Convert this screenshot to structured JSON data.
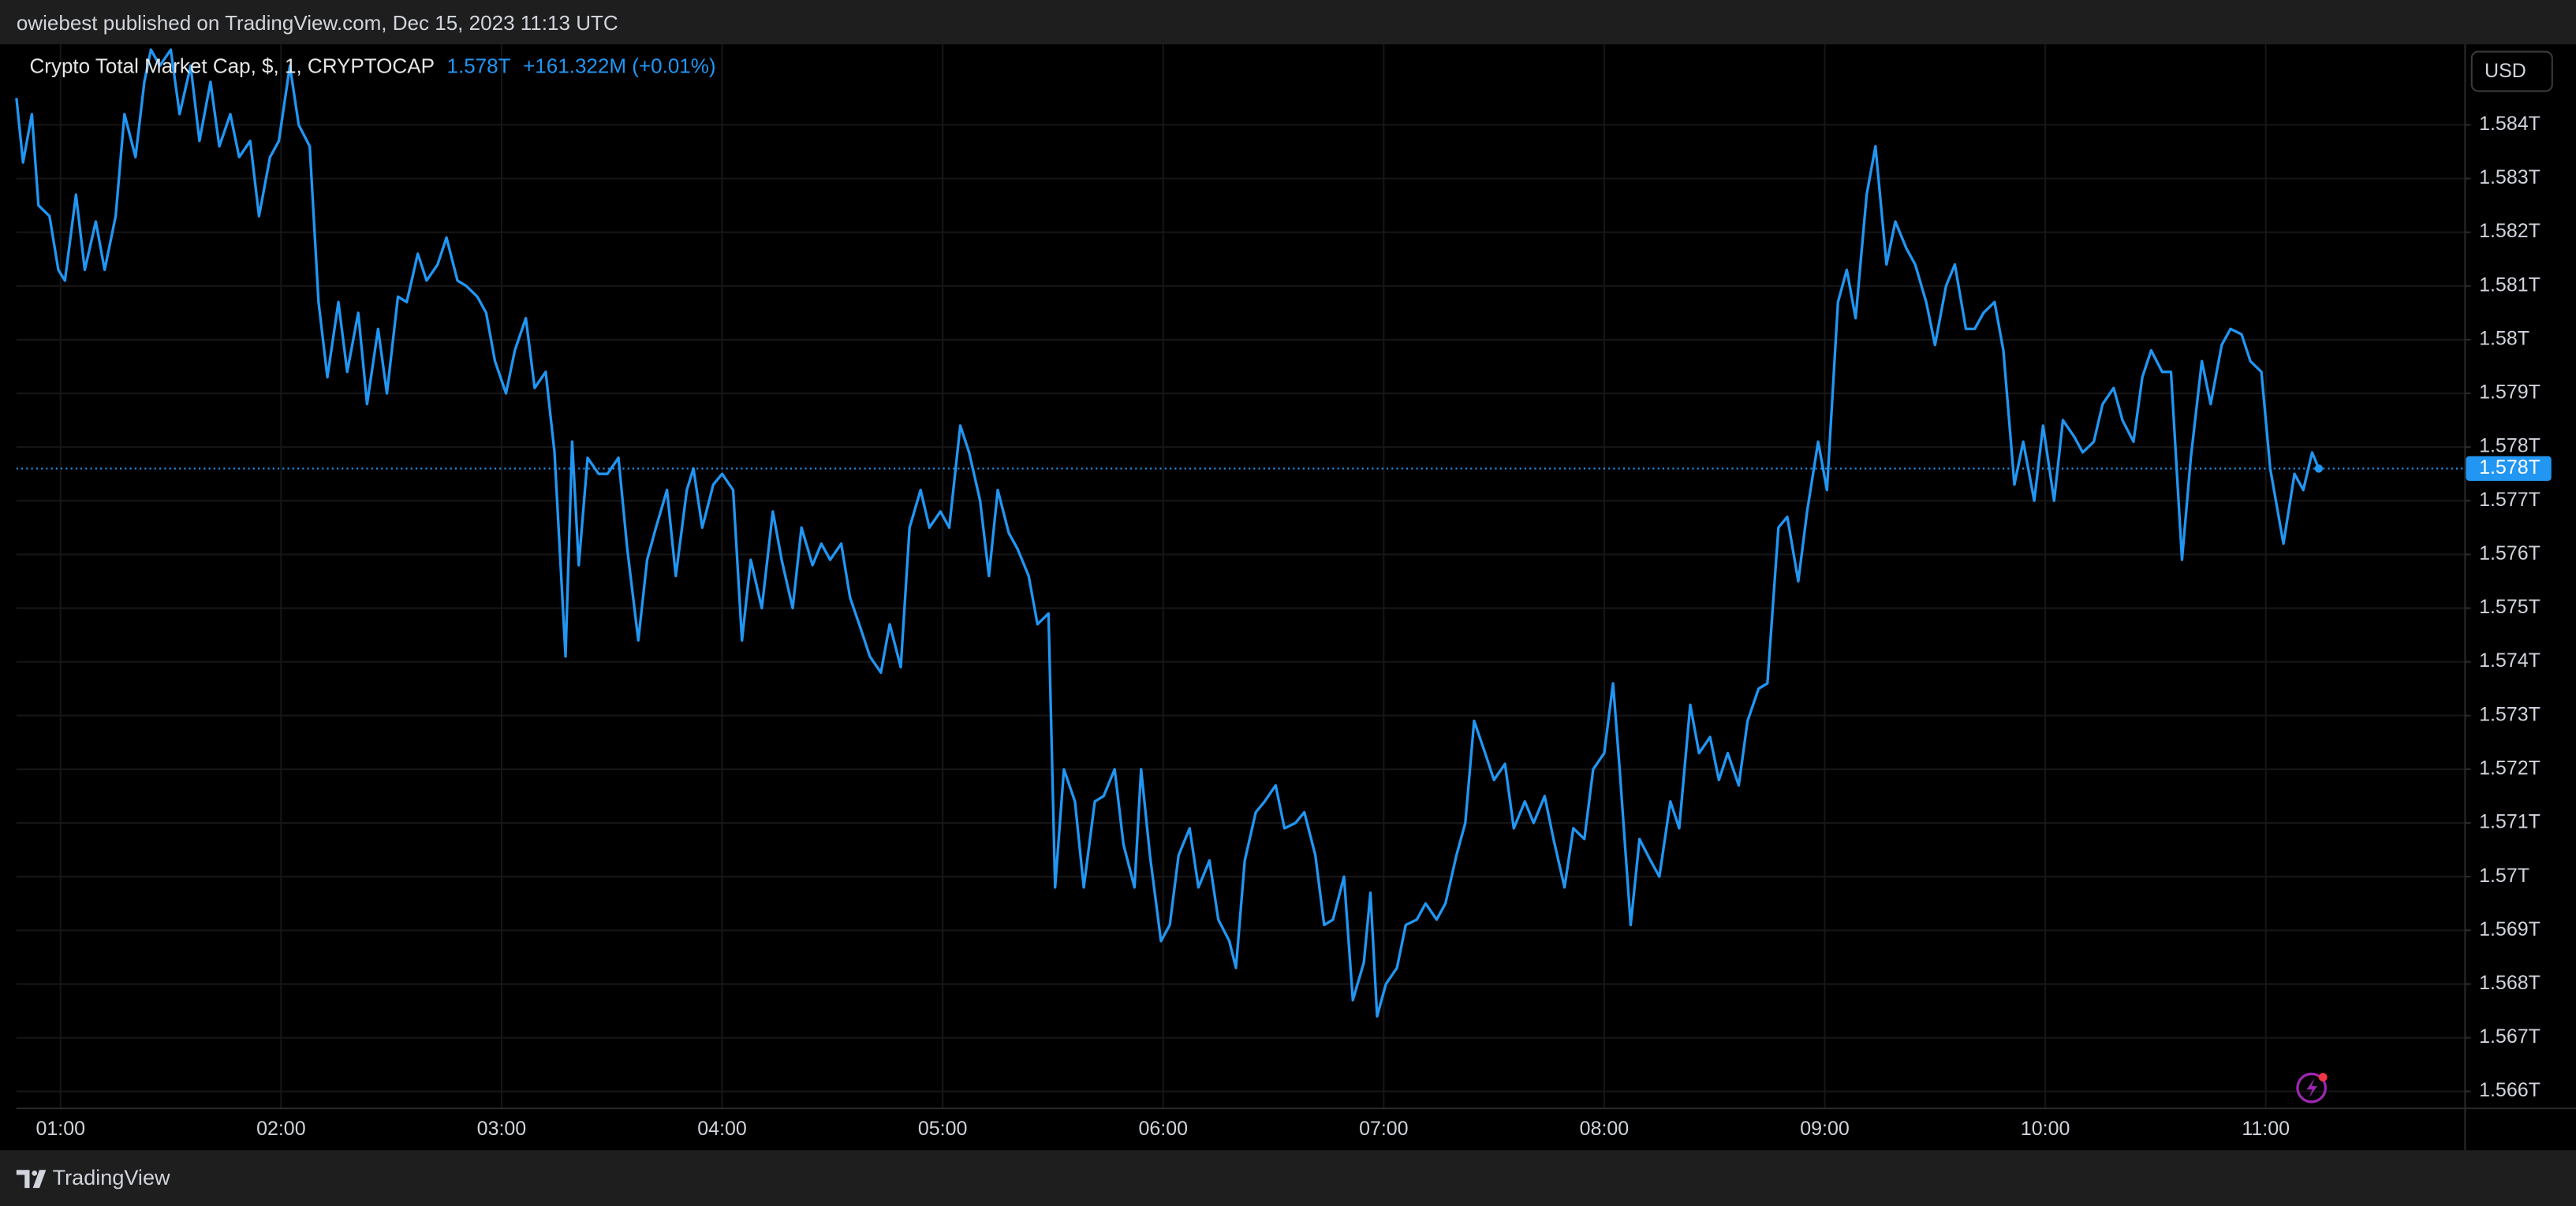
{
  "page": {
    "byline": "owiebest published on TradingView.com, Dec 15, 2023 11:13 UTC",
    "brand": "TradingView"
  },
  "chart_data": {
    "type": "line",
    "currency": "USD",
    "change_label": "+161.322M (+0.01%)",
    "last_price": {
      "value": 1.5776,
      "label": "1.578T"
    },
    "grid": true,
    "xlim": [
      0.8,
      11.9
    ],
    "ylim": [
      1.5657,
      1.5855
    ],
    "xticks": [
      {
        "value": 1,
        "label": "01:00"
      },
      {
        "value": 2,
        "label": "02:00"
      },
      {
        "value": 3,
        "label": "03:00"
      },
      {
        "value": 4,
        "label": "04:00"
      },
      {
        "value": 5,
        "label": "05:00"
      },
      {
        "value": 6,
        "label": "06:00"
      },
      {
        "value": 7,
        "label": "07:00"
      },
      {
        "value": 8,
        "label": "08:00"
      },
      {
        "value": 9,
        "label": "09:00"
      },
      {
        "value": 10,
        "label": "10:00"
      },
      {
        "value": 11,
        "label": "11:00"
      }
    ],
    "yticks": [
      {
        "value": 1.566,
        "label": "1.566T"
      },
      {
        "value": 1.567,
        "label": "1.567T"
      },
      {
        "value": 1.568,
        "label": "1.568T"
      },
      {
        "value": 1.569,
        "label": "1.569T"
      },
      {
        "value": 1.57,
        "label": "1.57T"
      },
      {
        "value": 1.571,
        "label": "1.571T"
      },
      {
        "value": 1.572,
        "label": "1.572T"
      },
      {
        "value": 1.573,
        "label": "1.573T"
      },
      {
        "value": 1.574,
        "label": "1.574T"
      },
      {
        "value": 1.575,
        "label": "1.575T"
      },
      {
        "value": 1.576,
        "label": "1.576T"
      },
      {
        "value": 1.577,
        "label": "1.577T"
      },
      {
        "value": 1.578,
        "label": "1.578T"
      },
      {
        "value": 1.579,
        "label": "1.579T"
      },
      {
        "value": 1.58,
        "label": "1.58T"
      },
      {
        "value": 1.581,
        "label": "1.581T"
      },
      {
        "value": 1.582,
        "label": "1.582T"
      },
      {
        "value": 1.583,
        "label": "1.583T"
      },
      {
        "value": 1.584,
        "label": "1.584T"
      }
    ],
    "x": [
      0.8,
      0.83,
      0.87,
      0.9,
      0.95,
      0.99,
      1.02,
      1.07,
      1.11,
      1.16,
      1.2,
      1.25,
      1.29,
      1.34,
      1.38,
      1.41,
      1.45,
      1.5,
      1.54,
      1.59,
      1.63,
      1.68,
      1.72,
      1.77,
      1.81,
      1.86,
      1.9,
      1.95,
      1.99,
      2.04,
      2.08,
      2.13,
      2.17,
      2.21,
      2.26,
      2.3,
      2.35,
      2.39,
      2.44,
      2.48,
      2.53,
      2.57,
      2.62,
      2.66,
      2.71,
      2.75,
      2.8,
      2.84,
      2.89,
      2.93,
      2.97,
      3.02,
      3.06,
      3.11,
      3.15,
      3.2,
      3.24,
      3.29,
      3.32,
      3.35,
      3.39,
      3.44,
      3.48,
      3.53,
      3.57,
      3.62,
      3.66,
      3.7,
      3.75,
      3.79,
      3.84,
      3.87,
      3.91,
      3.96,
      4.0,
      4.05,
      4.09,
      4.13,
      4.18,
      4.23,
      4.27,
      4.32,
      4.36,
      4.41,
      4.45,
      4.49,
      4.54,
      4.58,
      4.63,
      4.67,
      4.72,
      4.76,
      4.81,
      4.85,
      4.9,
      4.94,
      4.99,
      5.03,
      5.08,
      5.12,
      5.17,
      5.21,
      5.25,
      5.3,
      5.34,
      5.39,
      5.43,
      5.48,
      5.51,
      5.55,
      5.6,
      5.64,
      5.69,
      5.73,
      5.78,
      5.82,
      5.87,
      5.9,
      5.94,
      5.99,
      6.03,
      6.07,
      6.12,
      6.16,
      6.21,
      6.25,
      6.3,
      6.33,
      6.37,
      6.42,
      6.46,
      6.51,
      6.55,
      6.6,
      6.64,
      6.69,
      6.73,
      6.77,
      6.82,
      6.86,
      6.91,
      6.94,
      6.97,
      7.01,
      7.06,
      7.1,
      7.15,
      7.19,
      7.24,
      7.28,
      7.33,
      7.37,
      7.41,
      7.46,
      7.5,
      7.55,
      7.59,
      7.64,
      7.68,
      7.73,
      7.77,
      7.82,
      7.86,
      7.91,
      7.95,
      8.0,
      8.04,
      8.07,
      8.12,
      8.16,
      8.21,
      8.25,
      8.3,
      8.34,
      8.39,
      8.43,
      8.48,
      8.52,
      8.56,
      8.61,
      8.65,
      8.7,
      8.74,
      8.79,
      8.83,
      8.88,
      8.92,
      8.97,
      9.01,
      9.06,
      9.1,
      9.14,
      9.19,
      9.23,
      9.28,
      9.32,
      9.37,
      9.41,
      9.46,
      9.5,
      9.55,
      9.59,
      9.64,
      9.68,
      9.72,
      9.77,
      9.81,
      9.86,
      9.9,
      9.95,
      9.99,
      10.04,
      10.08,
      10.13,
      10.17,
      10.22,
      10.26,
      10.31,
      10.35,
      10.4,
      10.44,
      10.48,
      10.53,
      10.57,
      10.62,
      10.66,
      10.71,
      10.75,
      10.8,
      10.84,
      10.89,
      10.93,
      10.98,
      11.02,
      11.08,
      11.13,
      11.17,
      11.21,
      11.24
    ],
    "series": [
      {
        "name": "Crypto Total Market Cap, $, 1, CRYPTOCAP",
        "color": "#2196f3",
        "values": [
          1.5845,
          1.5833,
          1.5842,
          1.5825,
          1.5823,
          1.5813,
          1.5811,
          1.5827,
          1.5813,
          1.5822,
          1.5813,
          1.5823,
          1.5842,
          1.5834,
          1.5848,
          1.5854,
          1.5851,
          1.5854,
          1.5842,
          1.5851,
          1.5837,
          1.5848,
          1.5836,
          1.5842,
          1.5834,
          1.5837,
          1.5823,
          1.5834,
          1.5837,
          1.5851,
          1.584,
          1.5836,
          1.5807,
          1.5793,
          1.5807,
          1.5794,
          1.5805,
          1.5788,
          1.5802,
          1.579,
          1.5808,
          1.5807,
          1.5816,
          1.5811,
          1.5814,
          1.5819,
          1.5811,
          1.581,
          1.5808,
          1.5805,
          1.5796,
          1.579,
          1.5798,
          1.5804,
          1.5791,
          1.5794,
          1.5779,
          1.5741,
          1.5781,
          1.5758,
          1.5778,
          1.5775,
          1.5775,
          1.5778,
          1.5761,
          1.5744,
          1.5759,
          1.5765,
          1.5772,
          1.5756,
          1.5772,
          1.5776,
          1.5765,
          1.5773,
          1.5775,
          1.5772,
          1.5744,
          1.5759,
          1.575,
          1.5768,
          1.5759,
          1.575,
          1.5765,
          1.5758,
          1.5762,
          1.5759,
          1.5762,
          1.5752,
          1.5746,
          1.5741,
          1.5738,
          1.5747,
          1.5739,
          1.5765,
          1.5772,
          1.5765,
          1.5768,
          1.5765,
          1.5784,
          1.5779,
          1.577,
          1.5756,
          1.5772,
          1.5764,
          1.5761,
          1.5756,
          1.5747,
          1.5749,
          1.5698,
          1.572,
          1.5714,
          1.5698,
          1.5714,
          1.5715,
          1.572,
          1.5706,
          1.5698,
          1.572,
          1.5704,
          1.5688,
          1.5691,
          1.5704,
          1.5709,
          1.5698,
          1.5703,
          1.5692,
          1.5688,
          1.5683,
          1.5703,
          1.5712,
          1.5714,
          1.5717,
          1.5709,
          1.571,
          1.5712,
          1.5704,
          1.5691,
          1.5692,
          1.57,
          1.5677,
          1.5684,
          1.5697,
          1.5674,
          1.568,
          1.5683,
          1.5691,
          1.5692,
          1.5695,
          1.5692,
          1.5695,
          1.5704,
          1.571,
          1.5729,
          1.5723,
          1.5718,
          1.5721,
          1.5709,
          1.5714,
          1.571,
          1.5715,
          1.5707,
          1.5698,
          1.5709,
          1.5707,
          1.572,
          1.5723,
          1.5736,
          1.572,
          1.5691,
          1.5707,
          1.5703,
          1.57,
          1.5714,
          1.5709,
          1.5732,
          1.5723,
          1.5726,
          1.5718,
          1.5723,
          1.5717,
          1.5729,
          1.5735,
          1.5736,
          1.5765,
          1.5767,
          1.5755,
          1.5768,
          1.5781,
          1.5772,
          1.5807,
          1.5813,
          1.5804,
          1.5827,
          1.5836,
          1.5814,
          1.5822,
          1.5817,
          1.5814,
          1.5807,
          1.5799,
          1.581,
          1.5814,
          1.5802,
          1.5802,
          1.5805,
          1.5807,
          1.5798,
          1.5773,
          1.5781,
          1.577,
          1.5784,
          1.577,
          1.5785,
          1.5782,
          1.5779,
          1.5781,
          1.5788,
          1.5791,
          1.5785,
          1.5781,
          1.5793,
          1.5798,
          1.5794,
          1.5794,
          1.5759,
          1.5778,
          1.5796,
          1.5788,
          1.5799,
          1.5802,
          1.5801,
          1.5796,
          1.5794,
          1.5776,
          1.5762,
          1.5775,
          1.5772,
          1.5779,
          1.5776
        ]
      }
    ]
  }
}
